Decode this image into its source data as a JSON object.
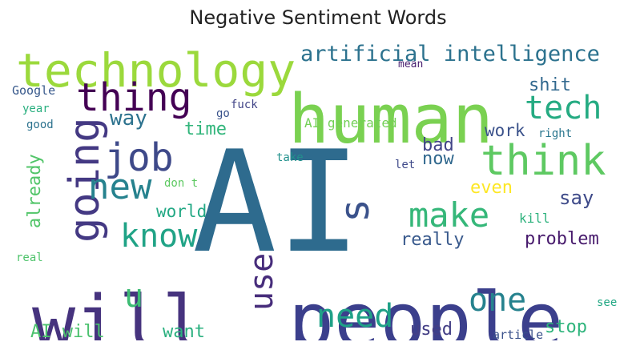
{
  "title": "Negative Sentiment Words",
  "words": [
    {
      "text": "AI",
      "color": "#2e6b8e"
    },
    {
      "text": "human",
      "color": "#7ad151"
    },
    {
      "text": "people",
      "color": "#3b3f8c"
    },
    {
      "text": "will",
      "color": "#46337e"
    },
    {
      "text": "technology",
      "color": "#9bd93c"
    },
    {
      "text": "think",
      "color": "#5ec962"
    },
    {
      "text": "thing",
      "color": "#440154"
    },
    {
      "text": "job",
      "color": "#3e4989"
    },
    {
      "text": "tech",
      "color": "#25ab82"
    },
    {
      "text": "going",
      "color": "#443983"
    },
    {
      "text": "new",
      "color": "#26828e"
    },
    {
      "text": "make",
      "color": "#35b779"
    },
    {
      "text": "know",
      "color": "#20a386"
    },
    {
      "text": "s",
      "color": "#3b528b"
    },
    {
      "text": "artificial intelligence",
      "color": "#2c728e"
    },
    {
      "text": "need",
      "color": "#1fa187"
    },
    {
      "text": "one",
      "color": "#26828e"
    },
    {
      "text": "use",
      "color": "#472d7b"
    },
    {
      "text": "u",
      "color": "#3dbc74"
    },
    {
      "text": "way",
      "color": "#2c728e"
    },
    {
      "text": "shit",
      "color": "#31688e"
    },
    {
      "text": "time",
      "color": "#31b57b"
    },
    {
      "text": "world",
      "color": "#22a884"
    },
    {
      "text": "work",
      "color": "#3b528b"
    },
    {
      "text": "bad",
      "color": "#414487"
    },
    {
      "text": "now",
      "color": "#31688e"
    },
    {
      "text": "even",
      "color": "#fde725"
    },
    {
      "text": "say",
      "color": "#3e4a89"
    },
    {
      "text": "really",
      "color": "#38598c"
    },
    {
      "text": "problem",
      "color": "#481b6d"
    },
    {
      "text": "AI will",
      "color": "#4ac16d"
    },
    {
      "text": "want",
      "color": "#2ab07f"
    },
    {
      "text": "used",
      "color": "#433e85"
    },
    {
      "text": "stop",
      "color": "#2fb47c"
    },
    {
      "text": "already",
      "color": "#52c569"
    },
    {
      "text": "AI generated",
      "color": "#73d056"
    },
    {
      "text": "Google",
      "color": "#38598c"
    },
    {
      "text": "year",
      "color": "#29af7f"
    },
    {
      "text": "good",
      "color": "#2c728e"
    },
    {
      "text": "fuck",
      "color": "#414487"
    },
    {
      "text": "go",
      "color": "#3a538b"
    },
    {
      "text": "mean",
      "color": "#481f70"
    },
    {
      "text": "right",
      "color": "#2a768e"
    },
    {
      "text": "take",
      "color": "#21918c"
    },
    {
      "text": "don t",
      "color": "#5ec962"
    },
    {
      "text": "let",
      "color": "#3e4989"
    },
    {
      "text": "kill",
      "color": "#2db27d"
    },
    {
      "text": "real",
      "color": "#4ec36b"
    },
    {
      "text": "see",
      "color": "#22a884"
    },
    {
      "text": "article",
      "color": "#3b528b"
    }
  ]
}
